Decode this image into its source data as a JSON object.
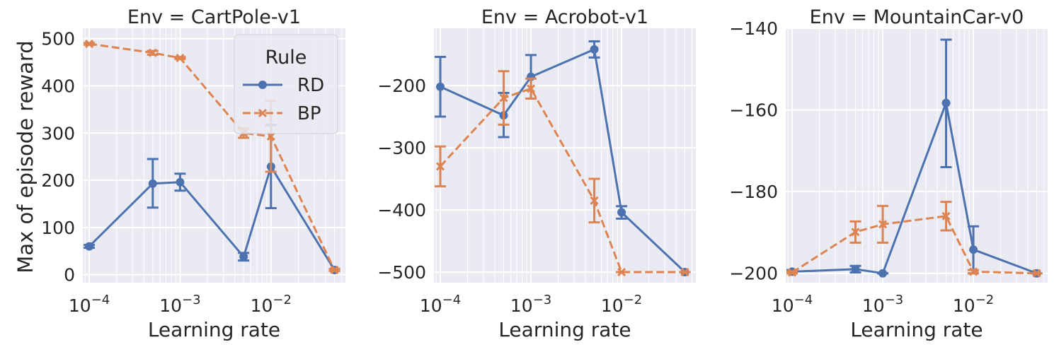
{
  "figure": {
    "ylabel": "Max of episode reward",
    "xlabel": "Learning rate",
    "legend": {
      "title": "Rule",
      "entries": [
        "RD",
        "BP"
      ],
      "placement": "top-right of first panel"
    },
    "colors": {
      "RD": "#4c72b0",
      "BP": "#dd8452",
      "panel_bg": "#eaeaf2",
      "grid": "#ffffff"
    }
  },
  "chart_data": [
    {
      "type": "line",
      "title": "Env = CartPole-v1",
      "xlabel": "Learning rate",
      "ylabel": "Max of episode reward",
      "xscale": "log",
      "xlim": [
        8.5e-05,
        0.066
      ],
      "ylim": [
        -17,
        522
      ],
      "yticks": [
        0,
        100,
        200,
        300,
        400,
        500
      ],
      "xticks": [
        0.0001,
        0.001,
        0.01
      ],
      "xtick_labels": [
        [
          "10",
          "−4"
        ],
        [
          "10",
          "−3"
        ],
        [
          "10",
          "−2"
        ]
      ],
      "grid": true,
      "legend": true,
      "x": [
        0.0001,
        0.0005,
        0.001,
        0.005,
        0.01,
        0.05
      ],
      "series": [
        {
          "name": "RD",
          "values": [
            60,
            193,
            196,
            38,
            229,
            10
          ],
          "err_low": [
            57,
            142,
            178,
            30,
            141,
            8
          ],
          "err_high": [
            63,
            245,
            214,
            46,
            317,
            12
          ]
        },
        {
          "name": "BP",
          "values": [
            489,
            470,
            459,
            300,
            293,
            10
          ],
          "err_low": [
            487,
            466,
            457,
            290,
            218,
            8
          ],
          "err_high": [
            491,
            474,
            461,
            310,
            368,
            12
          ]
        }
      ]
    },
    {
      "type": "line",
      "title": "Env = Acrobot-v1",
      "xlabel": "Learning rate",
      "ylabel": "",
      "xscale": "log",
      "xlim": [
        8.5e-05,
        0.066
      ],
      "ylim": [
        -517,
        -108
      ],
      "yticks": [
        -500,
        -400,
        -300,
        -200
      ],
      "xticks": [
        0.0001,
        0.001,
        0.01
      ],
      "xtick_labels": [
        [
          "10",
          "−4"
        ],
        [
          "10",
          "−3"
        ],
        [
          "10",
          "−2"
        ]
      ],
      "grid": true,
      "legend": false,
      "x": [
        0.0001,
        0.0005,
        0.001,
        0.005,
        0.01,
        0.05
      ],
      "series": [
        {
          "name": "RD",
          "values": [
            -202,
            -248,
            -186,
            -142,
            -404,
            -500
          ],
          "err_low": [
            -250,
            -283,
            -221,
            -155,
            -414,
            -500
          ],
          "err_high": [
            -154,
            -212,
            -151,
            -129,
            -394,
            -500
          ]
        },
        {
          "name": "BP",
          "values": [
            -330,
            -220,
            -205,
            -385,
            -500,
            -500
          ],
          "err_low": [
            -362,
            -263,
            -221,
            -420,
            -500,
            -500
          ],
          "err_high": [
            -298,
            -177,
            -189,
            -350,
            -500,
            -500
          ]
        }
      ]
    },
    {
      "type": "line",
      "title": "Env = MountainCar-v0",
      "xlabel": "Learning rate",
      "ylabel": "",
      "xscale": "log",
      "xlim": [
        8.5e-05,
        0.066
      ],
      "ylim": [
        -202.3,
        -140
      ],
      "yticks": [
        -200,
        -180,
        -160,
        -140
      ],
      "xticks": [
        0.0001,
        0.001,
        0.01
      ],
      "xtick_labels": [
        [
          "10",
          "−4"
        ],
        [
          "10",
          "−3"
        ],
        [
          "10",
          "−2"
        ]
      ],
      "grid": true,
      "legend": false,
      "x": [
        0.0001,
        0.0005,
        0.001,
        0.005,
        0.01,
        0.05
      ],
      "series": [
        {
          "name": "RD",
          "values": [
            -199.6,
            -199.0,
            -200.0,
            -158.3,
            -194.2,
            -200.0
          ],
          "err_low": [
            -200.0,
            -199.8,
            -200.0,
            -174.0,
            -200.0,
            -200.0
          ],
          "err_high": [
            -199.2,
            -198.2,
            -200.0,
            -142.8,
            -188.5,
            -200.0
          ]
        },
        {
          "name": "BP",
          "values": [
            -199.8,
            -189.9,
            -188.0,
            -186.0,
            -199.6,
            -200.0
          ],
          "err_low": [
            -200.0,
            -192.5,
            -192.5,
            -189.5,
            -200.0,
            -200.0
          ],
          "err_high": [
            -199.5,
            -187.3,
            -183.5,
            -182.5,
            -199.2,
            -200.0
          ]
        }
      ]
    }
  ]
}
